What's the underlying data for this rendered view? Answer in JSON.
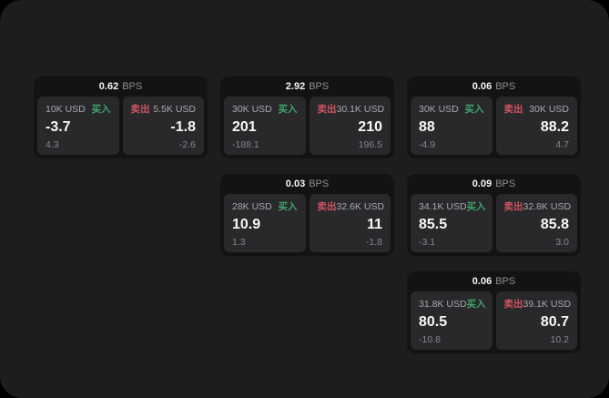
{
  "labels": {
    "bps": "BPS",
    "buy": "买入",
    "sell": "卖出"
  },
  "colors": {
    "background": "#000000",
    "surface": "#1d1d1f",
    "card": "#131314",
    "tile": "#29292c",
    "buy_green": "#42a368",
    "sell_red": "#cf5360",
    "text_primary": "#f5f5f5",
    "text_muted": "#8e8e93"
  },
  "cards": [
    {
      "bps": "0.62",
      "buy": {
        "size": "10K USD",
        "value": "-3.7",
        "delta": "4.3"
      },
      "sell": {
        "size": "5.5K USD",
        "value": "-1.8",
        "delta": "-2.6"
      }
    },
    {
      "bps": "2.92",
      "buy": {
        "size": "30K USD",
        "value": "201",
        "delta": "-188.1"
      },
      "sell": {
        "size": "30.1K USD",
        "value": "210",
        "delta": "196.5"
      }
    },
    {
      "bps": "0.06",
      "buy": {
        "size": "30K USD",
        "value": "88",
        "delta": "-4.9"
      },
      "sell": {
        "size": "30K USD",
        "value": "88.2",
        "delta": "4.7"
      }
    },
    {
      "bps": "0.03",
      "buy": {
        "size": "28K USD",
        "value": "10.9",
        "delta": "1.3"
      },
      "sell": {
        "size": "32.6K USD",
        "value": "11",
        "delta": "-1.8"
      }
    },
    {
      "bps": "0.09",
      "buy": {
        "size": "34.1K USD",
        "value": "85.5",
        "delta": "-3.1"
      },
      "sell": {
        "size": "32.8K USD",
        "value": "85.8",
        "delta": "3.0"
      }
    },
    {
      "bps": "0.06",
      "buy": {
        "size": "31.8K USD",
        "value": "80.5",
        "delta": "-10.8"
      },
      "sell": {
        "size": "39.1K USD",
        "value": "80.7",
        "delta": "10.2"
      }
    }
  ]
}
